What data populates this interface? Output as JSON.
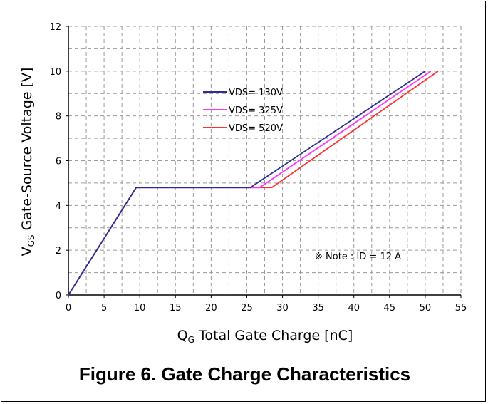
{
  "caption": "Figure 6. Gate Charge Characteristics",
  "note": "※ Note : ID = 12 A",
  "chart_data": {
    "type": "line",
    "title": "",
    "xlabel_main": "Q",
    "xlabel_sub": "G",
    "xlabel_rest": " Total Gate Charge [nC]",
    "ylabel_main": "V",
    "ylabel_sub": "GS",
    "ylabel_rest": " Gate-Source Voltage [V]",
    "xlim": [
      0,
      55
    ],
    "ylim": [
      0,
      12
    ],
    "xticks": [
      0,
      5,
      10,
      15,
      20,
      25,
      30,
      35,
      40,
      45,
      50,
      55
    ],
    "yticks": [
      0,
      2,
      4,
      6,
      8,
      10,
      12
    ],
    "grid": true,
    "legend_position": "top-center",
    "series": [
      {
        "name": "VDS= 130V",
        "color": "#2b2f8f",
        "x": [
          0,
          9.5,
          25.5,
          50
        ],
        "y": [
          0,
          4.8,
          4.8,
          10
        ]
      },
      {
        "name": "VDS= 325V",
        "color": "#ff33ff",
        "x": [
          0,
          9.5,
          26.8,
          50.8
        ],
        "y": [
          0,
          4.8,
          4.8,
          10
        ]
      },
      {
        "name": "VDS= 520V",
        "color": "#ff3030",
        "x": [
          0,
          9.5,
          28.5,
          51.8
        ],
        "y": [
          0,
          4.8,
          4.8,
          10
        ]
      }
    ]
  }
}
